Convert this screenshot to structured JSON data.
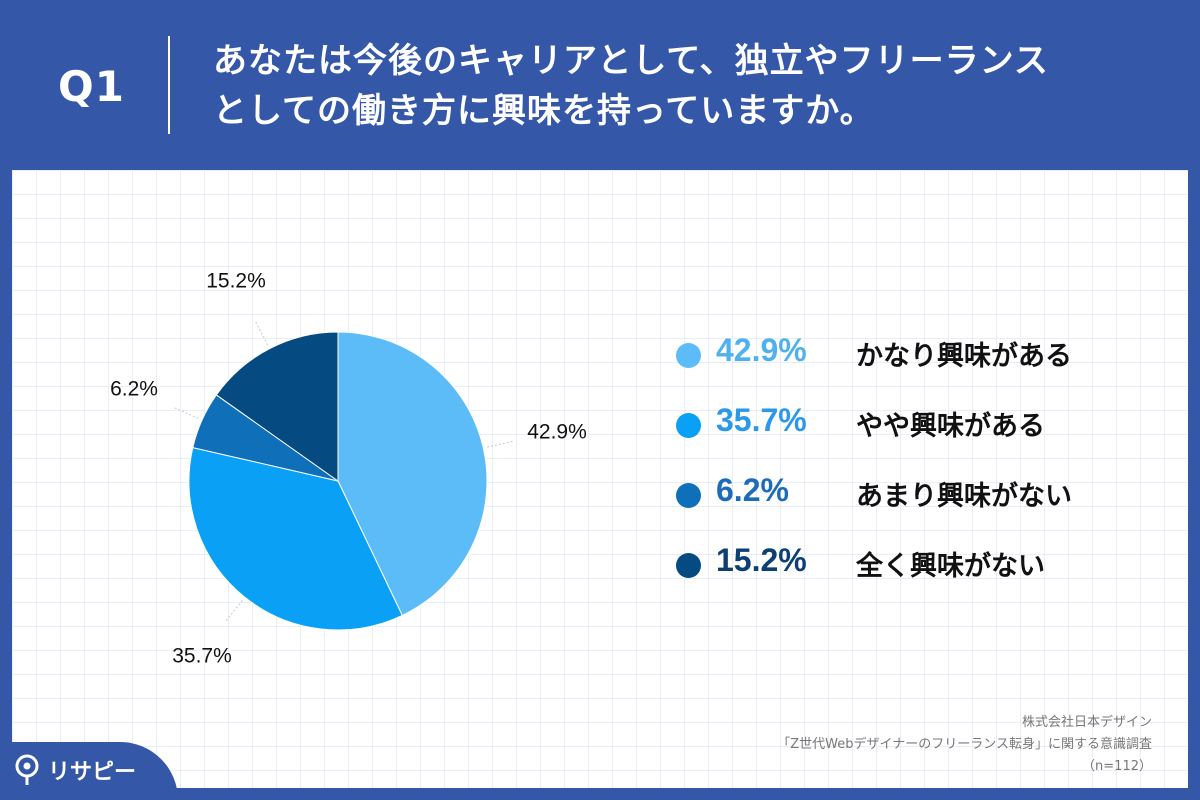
{
  "header": {
    "question_id": "Q1",
    "title_line1": "あなたは今後のキャリアとして、独立やフリーランス",
    "title_line2": "としての働き方に興味を持っていますか。"
  },
  "chart_data": {
    "type": "pie",
    "categories": [
      "かなり興味がある",
      "やや興味がある",
      "あまり興味がない",
      "全く興味がない"
    ],
    "values": [
      42.9,
      35.7,
      6.2,
      15.2
    ],
    "value_labels": [
      "42.9%",
      "35.7%",
      "6.2%",
      "15.2%"
    ],
    "colors": [
      "#5bbcf7",
      "#0aa0f5",
      "#0f6fb8",
      "#064a82"
    ],
    "legend_value_colors": [
      "#4fb2ee",
      "#2b98ea",
      "#1e6bb8",
      "#0d3f73"
    ],
    "legend_placement": "right",
    "start_angle": "top",
    "direction": "clockwise"
  },
  "source": {
    "line1": "株式会社日本デザイン",
    "line2": "「Z世代Webデザイナーのフリーランス転身」に関する意識調査",
    "line3": "（n=112）"
  },
  "brand": {
    "name": "リサピー"
  },
  "colors": {
    "background": "#3457a8",
    "panel": "#ffffff"
  }
}
